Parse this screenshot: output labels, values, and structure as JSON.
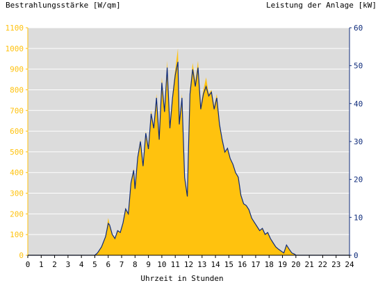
{
  "colors": {
    "irradiance": "#ffc20e",
    "power": "#0d2a7a",
    "plot_bg": "#dcdcdc",
    "grid": "#ffffff",
    "axis_text": "#000000"
  },
  "chart_data": {
    "type": "area",
    "left_title": "Bestrahlungsstärke [W/qm]",
    "right_title": "Leistung der Anlage [kW]",
    "xlabel": "Uhrzeit in Stunden",
    "xlim": [
      0,
      24
    ],
    "ylim_left": [
      0,
      1100
    ],
    "ylim_right": [
      0,
      60
    ],
    "x_ticks": [
      "0",
      "1",
      "2",
      "3",
      "4",
      "5",
      "6",
      "7",
      "8",
      "9",
      "10",
      "11",
      "12",
      "13",
      "14",
      "15",
      "16",
      "17",
      "18",
      "19",
      "20",
      "21",
      "22",
      "23",
      "24"
    ],
    "y_ticks_left": [
      "0",
      "100",
      "200",
      "300",
      "400",
      "500",
      "600",
      "700",
      "800",
      "900",
      "1000",
      "1100"
    ],
    "y_ticks_right": [
      "0",
      "10",
      "20",
      "30",
      "40",
      "50",
      "60"
    ],
    "grid": "horizontal",
    "series": [
      {
        "name": "Bestrahlungsstärke [W/qm]",
        "axis": "left",
        "style": "area",
        "x": [
          0,
          5,
          5.2,
          5.5,
          5.8,
          6.0,
          6.1,
          6.3,
          6.5,
          6.7,
          6.9,
          7.1,
          7.3,
          7.5,
          7.7,
          7.9,
          8.0,
          8.2,
          8.4,
          8.6,
          8.8,
          9.0,
          9.2,
          9.4,
          9.6,
          9.8,
          10.0,
          10.2,
          10.4,
          10.6,
          10.8,
          11.0,
          11.2,
          11.3,
          11.5,
          11.7,
          11.9,
          12.0,
          12.1,
          12.3,
          12.5,
          12.7,
          12.9,
          13.1,
          13.3,
          13.5,
          13.7,
          13.9,
          14.1,
          14.3,
          14.5,
          14.7,
          14.9,
          15.1,
          15.3,
          15.5,
          15.7,
          15.9,
          16.1,
          16.3,
          16.5,
          16.7,
          16.9,
          17.1,
          17.3,
          17.5,
          17.7,
          17.9,
          18.1,
          18.3,
          18.5,
          18.7,
          18.9,
          19.1,
          19.3,
          19.5,
          19.7,
          19.9,
          20.0,
          20.1,
          24
        ],
        "y": [
          0,
          0,
          10,
          40,
          90,
          180,
          150,
          100,
          80,
          120,
          110,
          160,
          230,
          200,
          360,
          420,
          320,
          480,
          560,
          430,
          600,
          520,
          700,
          620,
          780,
          560,
          860,
          700,
          940,
          620,
          780,
          900,
          1000,
          640,
          780,
          380,
          280,
          540,
          800,
          930,
          840,
          940,
          720,
          800,
          860,
          780,
          800,
          720,
          780,
          640,
          560,
          500,
          520,
          470,
          440,
          400,
          380,
          290,
          250,
          240,
          220,
          180,
          160,
          140,
          120,
          130,
          100,
          110,
          80,
          60,
          40,
          30,
          20,
          10,
          50,
          30,
          10,
          5,
          0,
          0,
          0
        ]
      },
      {
        "name": "Leistung der Anlage [kW]",
        "axis": "right",
        "style": "line",
        "x": [
          0,
          5,
          5.2,
          5.5,
          5.8,
          6.0,
          6.1,
          6.3,
          6.5,
          6.7,
          6.9,
          7.1,
          7.3,
          7.5,
          7.7,
          7.9,
          8.0,
          8.2,
          8.4,
          8.6,
          8.8,
          9.0,
          9.2,
          9.4,
          9.6,
          9.8,
          10.0,
          10.2,
          10.4,
          10.6,
          10.8,
          11.0,
          11.2,
          11.3,
          11.5,
          11.7,
          11.9,
          12.0,
          12.1,
          12.3,
          12.5,
          12.7,
          12.9,
          13.1,
          13.3,
          13.5,
          13.7,
          13.9,
          14.1,
          14.3,
          14.5,
          14.7,
          14.9,
          15.1,
          15.3,
          15.5,
          15.7,
          15.9,
          16.1,
          16.3,
          16.5,
          16.7,
          16.9,
          17.1,
          17.3,
          17.5,
          17.7,
          17.9,
          18.1,
          18.3,
          18.5,
          18.7,
          18.9,
          19.1,
          19.3,
          19.5,
          19.7,
          19.9,
          20.0,
          20.1,
          24
        ],
        "y": [
          0,
          0,
          0.6,
          2.2,
          4.9,
          8.4,
          8.0,
          5.5,
          4.4,
          6.5,
          6.0,
          8.5,
          12.2,
          10.9,
          19.1,
          22.4,
          17.5,
          25.8,
          30.0,
          23.5,
          32.2,
          28.0,
          37.3,
          33.5,
          41.5,
          30.5,
          45.5,
          37.8,
          49.5,
          33.5,
          41.5,
          47.5,
          51.0,
          34.5,
          41.5,
          20.5,
          15.5,
          29.5,
          42.5,
          49.0,
          44.5,
          49.5,
          38.5,
          42.5,
          44.5,
          42.0,
          43.0,
          38.5,
          41.5,
          34.5,
          30.5,
          27.2,
          28.2,
          25.5,
          24.0,
          21.8,
          20.6,
          15.8,
          13.6,
          13.1,
          12.0,
          9.8,
          8.7,
          7.6,
          6.5,
          7.1,
          5.5,
          6.0,
          4.4,
          3.3,
          2.2,
          1.6,
          1.1,
          0.6,
          2.7,
          1.6,
          0.6,
          0.3,
          0,
          0,
          0
        ]
      }
    ]
  }
}
